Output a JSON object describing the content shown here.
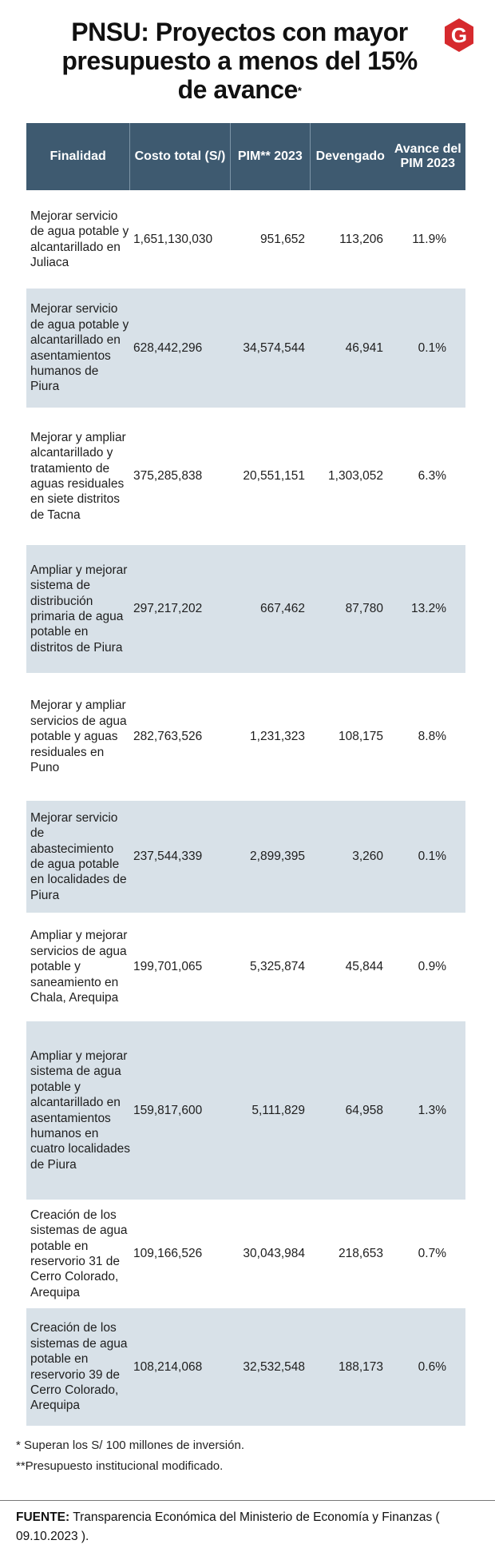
{
  "title": {
    "text": "PNSU: Proyectos con mayor presupuesto a menos del 15% de avance",
    "marker": "*"
  },
  "logo": {
    "letter": "G",
    "color": "#d62a2e"
  },
  "chart_data": {
    "type": "table",
    "columns": [
      "Finalidad",
      "Costo total (S/)",
      "PIM** 2023",
      "Devengado",
      "Avance del PIM 2023"
    ],
    "rows": [
      {
        "finalidad": "Mejorar servicio de agua potable y alcantarillado en Juliaca",
        "costo": "1,651,130,030",
        "pim": "951,652",
        "devengado": "113,206",
        "avance": "11.9%"
      },
      {
        "finalidad": "Mejorar servicio de agua potable y alcantarillado en asentamientos humanos de Piura",
        "costo": "628,442,296",
        "pim": "34,574,544",
        "devengado": "46,941",
        "avance": "0.1%"
      },
      {
        "finalidad": "Mejorar y ampliar alcantarillado y tratamiento de aguas residuales en siete distritos de Tacna",
        "costo": "375,285,838",
        "pim": "20,551,151",
        "devengado": "1,303,052",
        "avance": "6.3%"
      },
      {
        "finalidad": "Ampliar y mejorar sistema de distribución primaria de agua potable en distritos de Piura",
        "costo": "297,217,202",
        "pim": "667,462",
        "devengado": "87,780",
        "avance": "13.2%"
      },
      {
        "finalidad": "Mejorar y ampliar servicios de agua potable y aguas residuales en Puno",
        "costo": "282,763,526",
        "pim": "1,231,323",
        "devengado": "108,175",
        "avance": "8.8%"
      },
      {
        "finalidad": "Mejorar servicio de abastecimiento de agua potable en localidades de Piura",
        "costo": "237,544,339",
        "pim": "2,899,395",
        "devengado": "3,260",
        "avance": "0.1%"
      },
      {
        "finalidad": "Ampliar y mejorar servicios de agua potable y saneamiento en Chala, Arequipa",
        "costo": "199,701,065",
        "pim": "5,325,874",
        "devengado": "45,844",
        "avance": "0.9%"
      },
      {
        "finalidad": "Ampliar y mejorar sistema de agua potable y alcantarillado en asentamientos humanos en cuatro localidades de Piura",
        "costo": "159,817,600",
        "pim": "5,111,829",
        "devengado": "64,958",
        "avance": "1.3%"
      },
      {
        "finalidad": "Creación de los sistemas de agua potable en reservorio 31 de Cerro Colorado, Arequipa",
        "costo": "109,166,526",
        "pim": "30,043,984",
        "devengado": "218,653",
        "avance": "0.7%"
      },
      {
        "finalidad": "Creación de los sistemas de agua potable en reservorio 39 de Cerro Colorado, Arequipa",
        "costo": "108,214,068",
        "pim": "32,532,548",
        "devengado": "188,173",
        "avance": "0.6%"
      }
    ]
  },
  "notes": [
    "* Superan los S/ 100 millones de inversión.",
    "**Presupuesto institucional modificado."
  ],
  "source": {
    "label": "FUENTE:",
    "text": "Transparencia Económica del Ministerio de Economía y Finanzas ( 09.10.2023 )."
  },
  "colors": {
    "header_bg": "#3e5a70",
    "alt_row_bg": "#d8e1e8",
    "logo_red": "#d62a2e"
  }
}
